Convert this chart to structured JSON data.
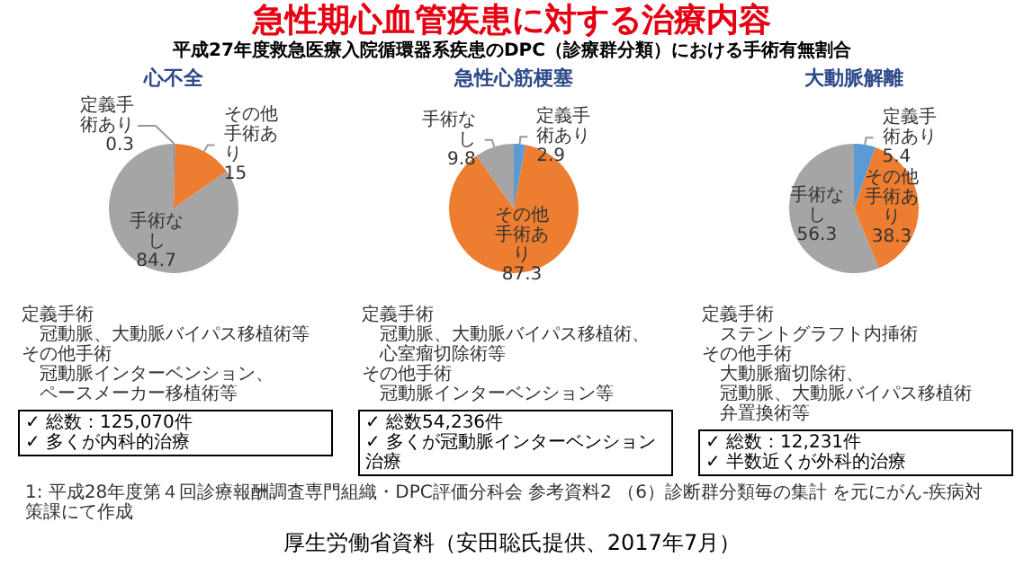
{
  "chart_data": [
    {
      "type": "other",
      "title": "急性期心血管疾患に対する治療内容",
      "subtitle": "平成27年度救急医療入院循環器系疾患のDPC（診療群分類）における手術有無割合",
      "annotations": [
        "1: 平成28年度第４回診療報酬調査専門組織・DPC評価分科会 参考資料2 （6）診断群分類毎の集計 を元にがん-疾病対策課にて作成",
        "厚生労働省資料（安田聡氏提供、2017年7月）"
      ]
    },
    {
      "type": "pie",
      "title": "心不全",
      "categories": [
        "定義手術あり",
        "その他手術あり",
        "手術なし"
      ],
      "values": [
        0.3,
        15,
        84.7
      ],
      "colors": [
        "#5b9bd5",
        "#ed7d31",
        "#a5a5a5"
      ],
      "data_labels": true,
      "annotations": [
        "定義手術",
        "　冠動脈、大動脈バイパス移植術等",
        "その他手術",
        "　冠動脈インターベンション、",
        "　ペースメーカー移植術等",
        "✓ 総数：125,070件",
        "✓ 多くが内科的治療"
      ]
    },
    {
      "type": "pie",
      "title": "急性心筋梗塞",
      "categories": [
        "定義手術あり",
        "その他手術あり",
        "手術なし"
      ],
      "values": [
        2.9,
        87.3,
        9.8
      ],
      "colors": [
        "#5b9bd5",
        "#ed7d31",
        "#a5a5a5"
      ],
      "data_labels": true,
      "annotations": [
        "定義手術",
        "　冠動脈、大動脈バイパス移植術、",
        "　心室瘤切除術等",
        "その他手術",
        "　冠動脈インターベンション等",
        "✓ 総数54,236件",
        "✓ 多くが冠動脈インターベンション治療"
      ]
    },
    {
      "type": "pie",
      "title": "大動脈解離",
      "categories": [
        "定義手術あり",
        "その他手術あり",
        "手術なし"
      ],
      "values": [
        5.4,
        38.3,
        56.3
      ],
      "colors": [
        "#5b9bd5",
        "#ed7d31",
        "#a5a5a5"
      ],
      "data_labels": true,
      "annotations": [
        "定義手術",
        "　ステントグラフト内挿術",
        "その他手術",
        "　大動脈瘤切除術、",
        "　冠動脈、大動脈バイパス移植術",
        "　弁置換術等",
        "✓ 総数：12,231件",
        "✓ 半数近くが外科的治療"
      ]
    }
  ]
}
